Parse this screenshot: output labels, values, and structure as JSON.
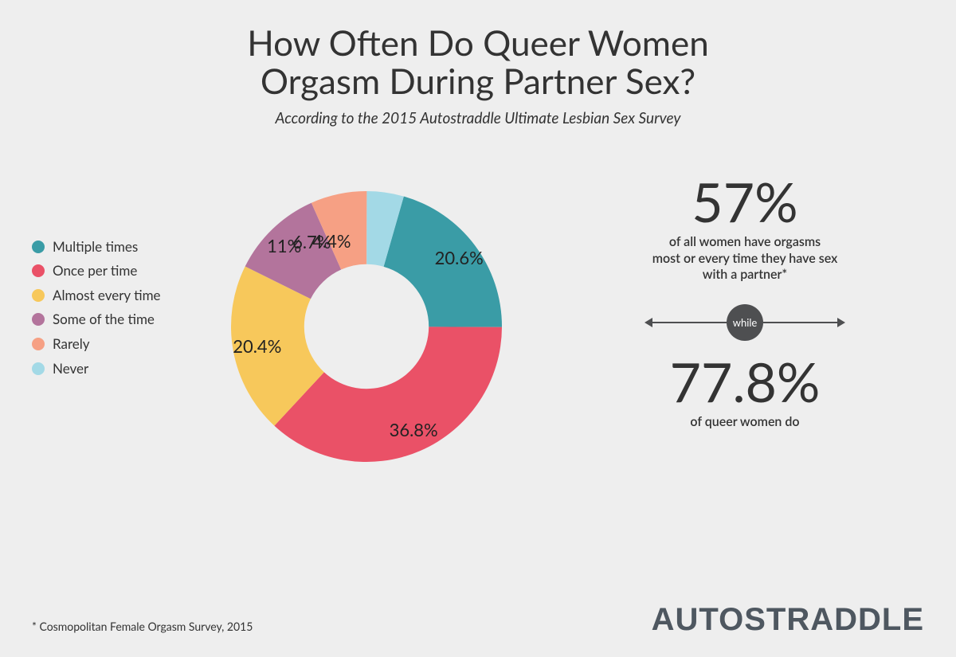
{
  "title_line1": "How Often Do Queer Women",
  "title_line2": "Orgasm During Partner Sex?",
  "subtitle": "According to the 2015 Autostraddle Ultimate Lesbian Sex Survey",
  "chart": {
    "type": "donut",
    "inner_radius_ratio": 0.46,
    "background_color": "#eeeeee",
    "slices": [
      {
        "label": "Multiple times",
        "value": 20.6,
        "display": "20.6%",
        "color": "#3a9ca6"
      },
      {
        "label": "Once per time",
        "value": 36.8,
        "display": "36.8%",
        "color": "#ea5167"
      },
      {
        "label": "Almost every time",
        "value": 20.4,
        "display": "20.4%",
        "color": "#f7c85b"
      },
      {
        "label": "Some of the time",
        "value": 11.0,
        "display": "11%",
        "color": "#b3749c"
      },
      {
        "label": "Rarely",
        "value": 6.7,
        "display": "6.7%",
        "color": "#f6a084"
      },
      {
        "label": "Never",
        "value": 4.4,
        "display": "4.4%",
        "color": "#a3d9e6"
      }
    ],
    "start_angle_deg": -74,
    "label_fontsize": 22,
    "label_color": "#222222"
  },
  "legend_fontsize": 17,
  "callouts": {
    "top_pct": "57%",
    "top_desc_l1": "of all women have orgasms",
    "top_desc_l2": "most or every time they have sex",
    "top_desc_l3": "with a partner*",
    "while_label": "while",
    "bottom_pct": "77.8%",
    "bottom_desc": "of queer women do",
    "big_pct_fontsize": 68,
    "desc_fontsize": 16,
    "while_pill_bg": "#4e4f51",
    "while_pill_fg": "#ffffff"
  },
  "footnote": "* Cosmopolitan Female Orgasm Survey, 2015",
  "logo_text": "AUTOSTRADDLE",
  "logo_color": "#4e5760"
}
